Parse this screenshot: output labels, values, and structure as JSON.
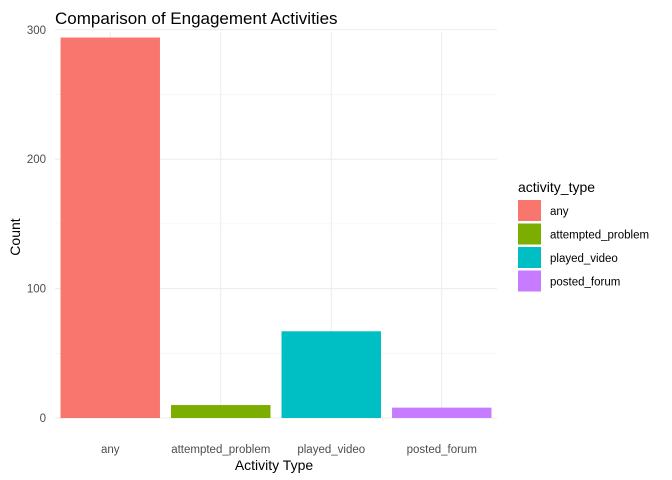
{
  "chart_data": {
    "type": "bar",
    "title": "Comparison of Engagement Activities",
    "xlabel": "Activity Type",
    "ylabel": "Count",
    "categories": [
      "any",
      "attempted_problem",
      "played_video",
      "posted_forum"
    ],
    "values": [
      294,
      10,
      67,
      8
    ],
    "ylim": [
      0,
      306
    ],
    "yticks": [
      0,
      100,
      200,
      300
    ],
    "grid": true,
    "legend": {
      "title": "activity_type",
      "placement": "right",
      "entries": [
        "any",
        "attempted_problem",
        "played_video",
        "posted_forum"
      ]
    },
    "colors": [
      "#F8766D",
      "#7CAE00",
      "#00BFC4",
      "#C77CFF"
    ]
  }
}
